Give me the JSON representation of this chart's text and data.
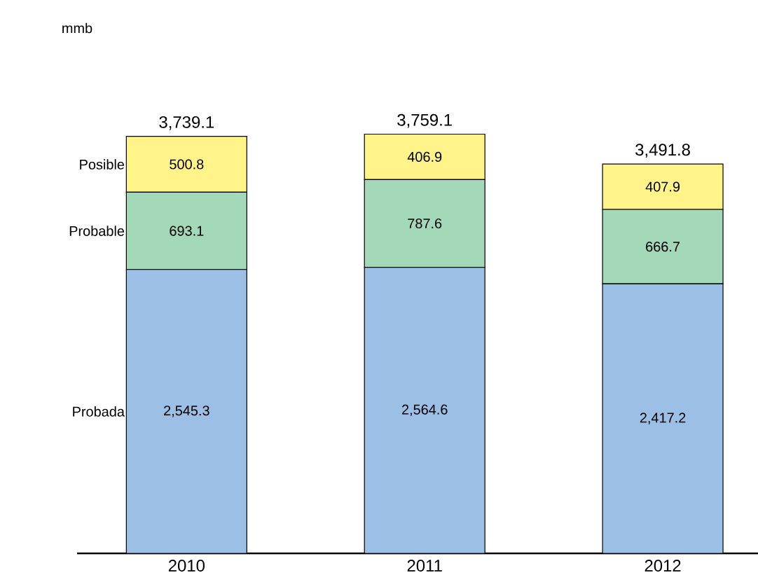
{
  "chart_data": {
    "type": "bar",
    "stacked": true,
    "annotations": [
      "mmb"
    ],
    "categories": [
      "2010",
      "2011",
      "2012"
    ],
    "series": [
      {
        "name": "Probada",
        "color": "#9bbfe5",
        "values": [
          2545.3,
          2564.6,
          2417.2
        ],
        "value_labels": [
          "2,545.3",
          "2,564.6",
          "2,417.2"
        ]
      },
      {
        "name": "Probable",
        "color": "#a3d9b9",
        "values": [
          693.1,
          787.6,
          666.7
        ],
        "value_labels": [
          "693.1",
          "787.6",
          "666.7"
        ]
      },
      {
        "name": "Posible",
        "color": "#fff38a",
        "values": [
          500.8,
          406.9,
          407.9
        ],
        "value_labels": [
          "500.8",
          "406.9",
          "407.9"
        ]
      }
    ],
    "totals": [
      "3,739.1",
      "3,759.1",
      "3,491.8"
    ]
  }
}
